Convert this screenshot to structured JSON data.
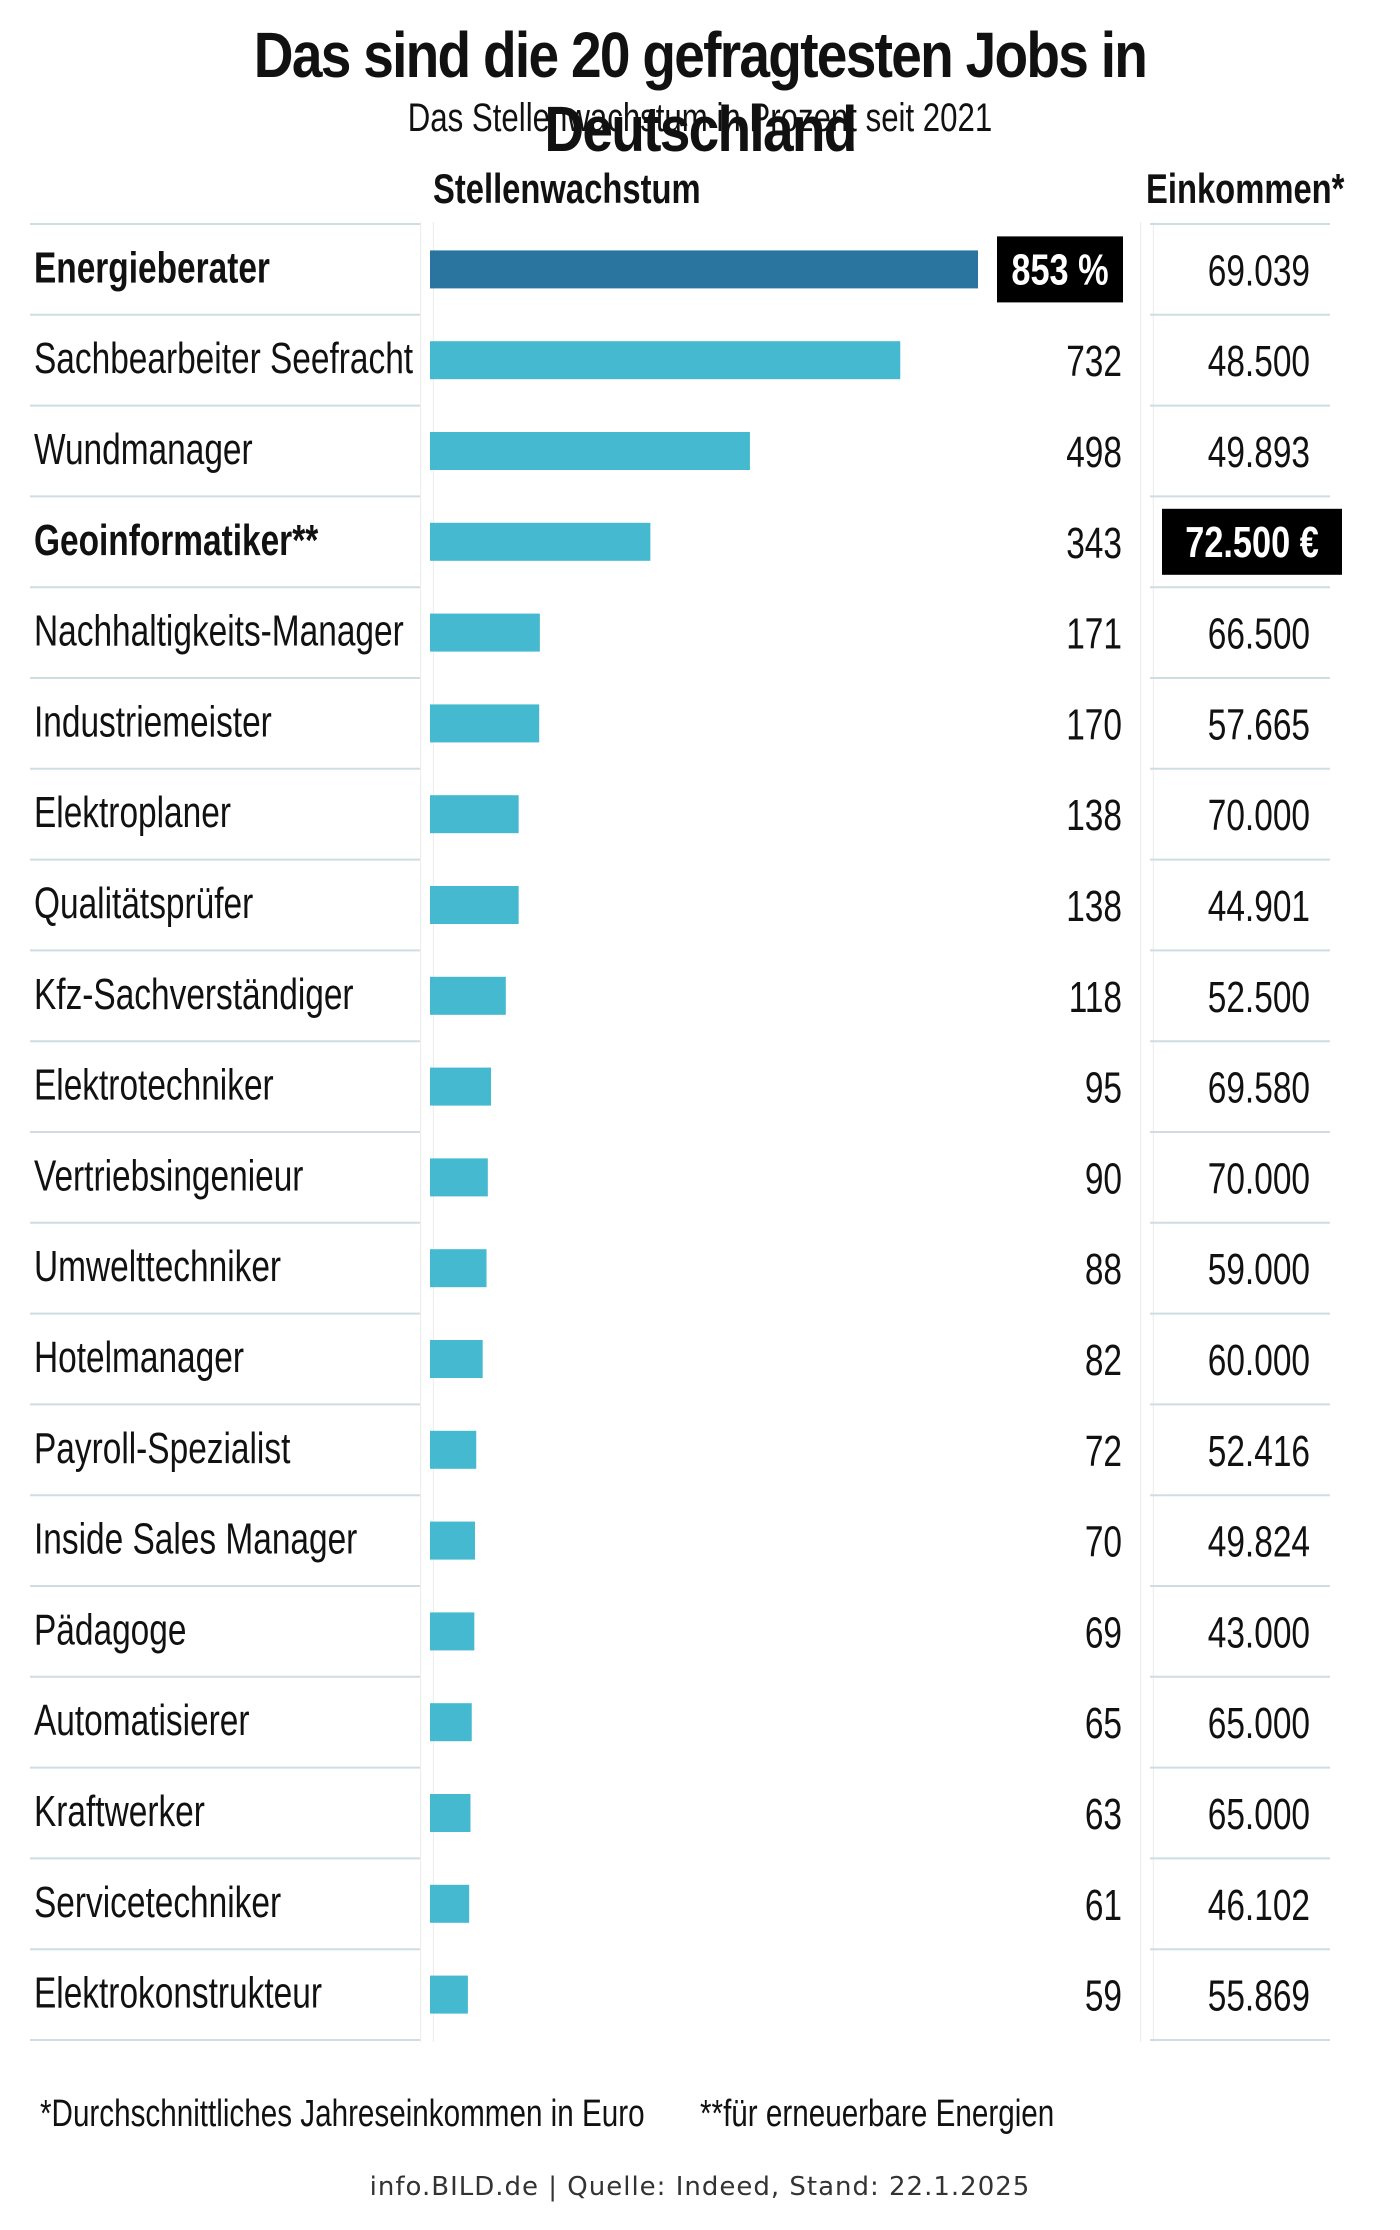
{
  "title": "Das sind die 20 gefragtesten Jobs in Deutschland",
  "subtitle": "Das Stellenwachstum in Prozent seit 2021",
  "columns": {
    "growth": "Stellenwachstum",
    "income": "Einkommen*"
  },
  "footnotes": {
    "income": "*Durchschnittliches Jahreseinkommen in Euro",
    "renewable": "**für erneuerbare Energien"
  },
  "source": "info.BILD.de | Quelle: Indeed, Stand: 22.1.2025",
  "colors": {
    "bar": "#45b9cf",
    "bar_highlight": "#2a75a0",
    "grid": "#cfdde3",
    "label_box": "#000000"
  },
  "chart_data": {
    "type": "bar",
    "orientation": "horizontal",
    "title": "Das sind die 20 gefragtesten Jobs in Deutschland",
    "xlabel": "Stellenwachstum",
    "xlim": [
      0,
      853
    ],
    "categories": [
      "Energieberater",
      "Sachbearbeiter Seefracht",
      "Wundmanager",
      "Geoinformatiker**",
      "Nachhaltigkeits-Manager",
      "Industriemeister",
      "Elektroplaner",
      "Qualitätsprüfer",
      "Kfz-Sachverständiger",
      "Elektrotechniker",
      "Vertriebsingenieur",
      "Umwelttechniker",
      "Hotelmanager",
      "Payroll-Spezialist",
      "Inside Sales Manager",
      "Pädagoge",
      "Automatisierer",
      "Kraftwerker",
      "Servicetechniker",
      "Elektrokonstrukteur"
    ],
    "values": [
      853,
      732,
      498,
      343,
      171,
      170,
      138,
      138,
      118,
      95,
      90,
      88,
      82,
      72,
      70,
      69,
      65,
      63,
      61,
      59
    ],
    "value_labels": [
      "853 %",
      "732",
      "498",
      "343",
      "171",
      "170",
      "138",
      "138",
      "118",
      "95",
      "90",
      "88",
      "82",
      "72",
      "70",
      "69",
      "65",
      "63",
      "61",
      "59"
    ],
    "income_labels": [
      "69.039",
      "48.500",
      "49.893",
      "72.500 €",
      "66.500",
      "57.665",
      "70.000",
      "44.901",
      "52.500",
      "69.580",
      "70.000",
      "59.000",
      "60.000",
      "52.416",
      "49.824",
      "43.000",
      "65.000",
      "65.000",
      "46.102",
      "55.869"
    ],
    "bold_rows": [
      0,
      3
    ],
    "highlight_value_row": 0,
    "highlight_income_row": 3
  }
}
